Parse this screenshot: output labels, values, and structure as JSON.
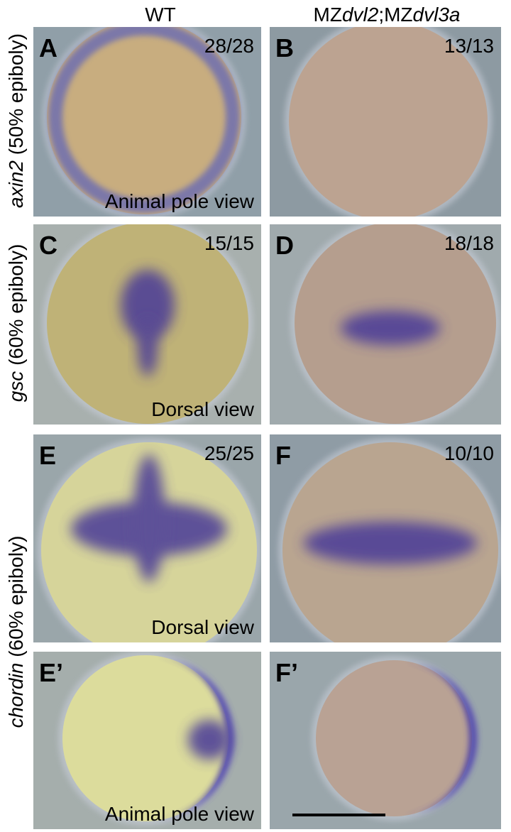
{
  "headers": [
    {
      "parts": [
        {
          "text": "WT"
        }
      ]
    },
    {
      "parts": [
        {
          "text": "MZ"
        },
        {
          "text": "dvl2",
          "italic": true
        },
        {
          "text": ";MZ"
        },
        {
          "text": "dvl3a",
          "italic": true
        }
      ]
    }
  ],
  "row_labels": [
    {
      "parts": [
        {
          "text": "axin2",
          "italic": true
        },
        {
          "text": " (50% epiboly)"
        }
      ]
    },
    {
      "parts": [
        {
          "text": "gsc",
          "italic": true
        },
        {
          "text": " (60% epiboly)"
        }
      ]
    },
    {
      "parts": [
        {
          "text": "chordin",
          "italic": true
        },
        {
          "text": " (60% epiboly)"
        }
      ]
    }
  ],
  "panels": [
    {
      "letter": "A",
      "count": "28/28",
      "view": "Animal pole view"
    },
    {
      "letter": "B",
      "count": "13/13"
    },
    {
      "letter": "C",
      "count": "15/15",
      "view": "Dorsal view"
    },
    {
      "letter": "D",
      "count": "18/18"
    },
    {
      "letter": "E",
      "count": "25/25",
      "view": "Dorsal view"
    },
    {
      "letter": "F",
      "count": "10/10"
    },
    {
      "letter": "E’",
      "view": "Animal pole view"
    },
    {
      "letter": "F’"
    }
  ]
}
